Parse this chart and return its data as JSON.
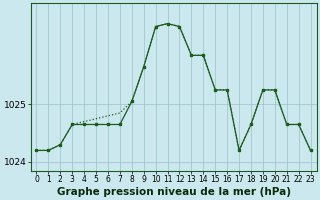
{
  "main_x": [
    0,
    1,
    2,
    3,
    4,
    5,
    6,
    7,
    8,
    9,
    10,
    11,
    12,
    13,
    14,
    15,
    16,
    17,
    18,
    19,
    20,
    21,
    22,
    23
  ],
  "main_y": [
    1024.2,
    1024.2,
    1024.3,
    1024.65,
    1024.65,
    1024.65,
    1024.65,
    1024.65,
    1025.05,
    1025.65,
    1026.35,
    1026.4,
    1026.35,
    1025.85,
    1025.85,
    1025.25,
    1025.25,
    1024.2,
    1024.65,
    1025.25,
    1025.25,
    1024.65,
    1024.65,
    1024.2
  ],
  "dotted_x": [
    0,
    1,
    2,
    3,
    4,
    5,
    6,
    7,
    8,
    9,
    10,
    11,
    12,
    13,
    14,
    15,
    16,
    17,
    18,
    19,
    20,
    21,
    22,
    23
  ],
  "dotted_y": [
    1024.2,
    1024.2,
    1024.3,
    1024.65,
    1024.7,
    1024.75,
    1024.8,
    1024.85,
    1025.05,
    1025.65,
    1026.35,
    1026.4,
    1026.35,
    1025.85,
    1025.85,
    1025.25,
    1025.25,
    1024.2,
    1024.65,
    1025.25,
    1025.25,
    1024.65,
    1024.65,
    1024.2
  ],
  "ylim_min": 1023.85,
  "ylim_max": 1026.75,
  "yticks": [
    1024.0,
    1025.0
  ],
  "xlim_min": -0.5,
  "xlim_max": 23.5,
  "bg_color": "#cce8ef",
  "line_color": "#1a5c1a",
  "grid_color": "#9bbfc8",
  "xlabel": "Graphe pression niveau de la mer (hPa)",
  "xlabel_fontsize": 7.5,
  "tick_fontsize": 5.5,
  "ytick_fontsize": 6.5,
  "marker_style": "s",
  "marker_size": 2.0,
  "linewidth": 0.9
}
